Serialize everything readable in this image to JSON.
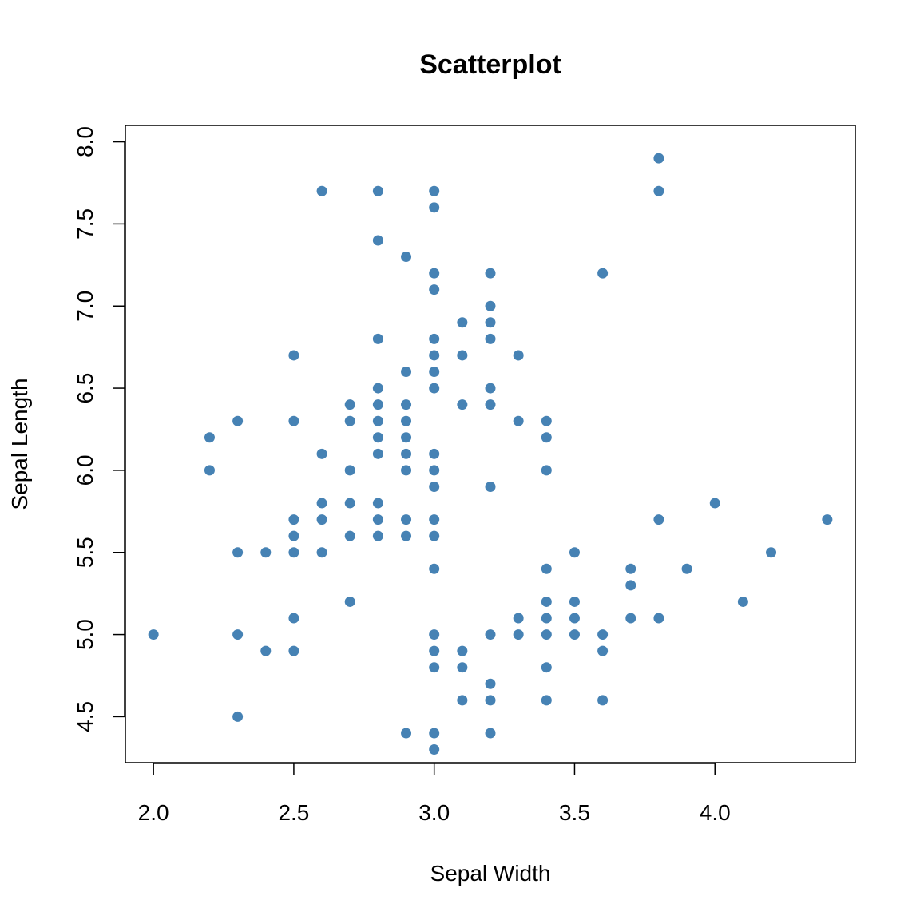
{
  "chart_data": {
    "type": "scatter",
    "title": "Scatterplot",
    "xlabel": "Sepal Width",
    "ylabel": "Sepal Length",
    "xlim": [
      1.9,
      4.5
    ],
    "ylim": [
      4.22,
      8.1
    ],
    "x_ticks": [
      "2.0",
      "2.5",
      "3.0",
      "3.5",
      "4.0"
    ],
    "y_ticks": [
      "4.5",
      "5.0",
      "5.5",
      "6.0",
      "6.5",
      "7.0",
      "7.5",
      "8.0"
    ],
    "grid": false,
    "point_color": "#4682B4",
    "points": [
      {
        "x": 2.0,
        "y": 5.0
      },
      {
        "x": 2.2,
        "y": 6.2
      },
      {
        "x": 2.2,
        "y": 6.0
      },
      {
        "x": 2.3,
        "y": 6.3
      },
      {
        "x": 2.3,
        "y": 5.5
      },
      {
        "x": 2.3,
        "y": 5.0
      },
      {
        "x": 2.3,
        "y": 4.5
      },
      {
        "x": 2.4,
        "y": 5.5
      },
      {
        "x": 2.4,
        "y": 4.9
      },
      {
        "x": 2.5,
        "y": 6.7
      },
      {
        "x": 2.5,
        "y": 6.3
      },
      {
        "x": 2.5,
        "y": 5.7
      },
      {
        "x": 2.5,
        "y": 5.6
      },
      {
        "x": 2.5,
        "y": 5.5
      },
      {
        "x": 2.5,
        "y": 5.1
      },
      {
        "x": 2.5,
        "y": 4.9
      },
      {
        "x": 2.6,
        "y": 7.7
      },
      {
        "x": 2.6,
        "y": 6.1
      },
      {
        "x": 2.6,
        "y": 5.8
      },
      {
        "x": 2.6,
        "y": 5.7
      },
      {
        "x": 2.6,
        "y": 5.5
      },
      {
        "x": 2.7,
        "y": 6.4
      },
      {
        "x": 2.7,
        "y": 6.3
      },
      {
        "x": 2.7,
        "y": 6.0
      },
      {
        "x": 2.7,
        "y": 5.8
      },
      {
        "x": 2.7,
        "y": 5.6
      },
      {
        "x": 2.7,
        "y": 5.2
      },
      {
        "x": 2.8,
        "y": 7.7
      },
      {
        "x": 2.8,
        "y": 7.4
      },
      {
        "x": 2.8,
        "y": 6.8
      },
      {
        "x": 2.8,
        "y": 6.5
      },
      {
        "x": 2.8,
        "y": 6.4
      },
      {
        "x": 2.8,
        "y": 6.3
      },
      {
        "x": 2.8,
        "y": 6.2
      },
      {
        "x": 2.8,
        "y": 6.1
      },
      {
        "x": 2.8,
        "y": 5.8
      },
      {
        "x": 2.8,
        "y": 5.7
      },
      {
        "x": 2.8,
        "y": 5.6
      },
      {
        "x": 2.9,
        "y": 7.3
      },
      {
        "x": 2.9,
        "y": 6.6
      },
      {
        "x": 2.9,
        "y": 6.4
      },
      {
        "x": 2.9,
        "y": 6.3
      },
      {
        "x": 2.9,
        "y": 6.2
      },
      {
        "x": 2.9,
        "y": 6.1
      },
      {
        "x": 2.9,
        "y": 6.0
      },
      {
        "x": 2.9,
        "y": 5.7
      },
      {
        "x": 2.9,
        "y": 5.6
      },
      {
        "x": 2.9,
        "y": 4.4
      },
      {
        "x": 3.0,
        "y": 7.7
      },
      {
        "x": 3.0,
        "y": 7.6
      },
      {
        "x": 3.0,
        "y": 7.2
      },
      {
        "x": 3.0,
        "y": 7.1
      },
      {
        "x": 3.0,
        "y": 6.8
      },
      {
        "x": 3.0,
        "y": 6.7
      },
      {
        "x": 3.0,
        "y": 6.6
      },
      {
        "x": 3.0,
        "y": 6.5
      },
      {
        "x": 3.0,
        "y": 6.1
      },
      {
        "x": 3.0,
        "y": 6.0
      },
      {
        "x": 3.0,
        "y": 5.9
      },
      {
        "x": 3.0,
        "y": 5.7
      },
      {
        "x": 3.0,
        "y": 5.6
      },
      {
        "x": 3.0,
        "y": 5.4
      },
      {
        "x": 3.0,
        "y": 5.0
      },
      {
        "x": 3.0,
        "y": 4.9
      },
      {
        "x": 3.0,
        "y": 4.8
      },
      {
        "x": 3.0,
        "y": 4.4
      },
      {
        "x": 3.0,
        "y": 4.3
      },
      {
        "x": 3.1,
        "y": 6.9
      },
      {
        "x": 3.1,
        "y": 6.7
      },
      {
        "x": 3.1,
        "y": 6.4
      },
      {
        "x": 3.1,
        "y": 4.9
      },
      {
        "x": 3.1,
        "y": 4.8
      },
      {
        "x": 3.1,
        "y": 4.6
      },
      {
        "x": 3.2,
        "y": 7.2
      },
      {
        "x": 3.2,
        "y": 7.0
      },
      {
        "x": 3.2,
        "y": 6.9
      },
      {
        "x": 3.2,
        "y": 6.8
      },
      {
        "x": 3.2,
        "y": 6.5
      },
      {
        "x": 3.2,
        "y": 6.4
      },
      {
        "x": 3.2,
        "y": 5.9
      },
      {
        "x": 3.2,
        "y": 5.0
      },
      {
        "x": 3.2,
        "y": 4.7
      },
      {
        "x": 3.2,
        "y": 4.6
      },
      {
        "x": 3.2,
        "y": 4.4
      },
      {
        "x": 3.3,
        "y": 6.7
      },
      {
        "x": 3.3,
        "y": 6.3
      },
      {
        "x": 3.3,
        "y": 5.1
      },
      {
        "x": 3.3,
        "y": 5.0
      },
      {
        "x": 3.4,
        "y": 6.3
      },
      {
        "x": 3.4,
        "y": 6.2
      },
      {
        "x": 3.4,
        "y": 6.0
      },
      {
        "x": 3.4,
        "y": 5.4
      },
      {
        "x": 3.4,
        "y": 5.2
      },
      {
        "x": 3.4,
        "y": 5.1
      },
      {
        "x": 3.4,
        "y": 5.0
      },
      {
        "x": 3.4,
        "y": 4.8
      },
      {
        "x": 3.4,
        "y": 4.6
      },
      {
        "x": 3.5,
        "y": 5.5
      },
      {
        "x": 3.5,
        "y": 5.2
      },
      {
        "x": 3.5,
        "y": 5.1
      },
      {
        "x": 3.5,
        "y": 5.0
      },
      {
        "x": 3.6,
        "y": 7.2
      },
      {
        "x": 3.6,
        "y": 5.0
      },
      {
        "x": 3.6,
        "y": 4.9
      },
      {
        "x": 3.6,
        "y": 4.6
      },
      {
        "x": 3.7,
        "y": 5.4
      },
      {
        "x": 3.7,
        "y": 5.3
      },
      {
        "x": 3.7,
        "y": 5.1
      },
      {
        "x": 3.8,
        "y": 7.9
      },
      {
        "x": 3.8,
        "y": 7.7
      },
      {
        "x": 3.8,
        "y": 5.7
      },
      {
        "x": 3.8,
        "y": 5.1
      },
      {
        "x": 3.9,
        "y": 5.4
      },
      {
        "x": 4.0,
        "y": 5.8
      },
      {
        "x": 4.1,
        "y": 5.2
      },
      {
        "x": 4.2,
        "y": 5.5
      },
      {
        "x": 4.4,
        "y": 5.7
      }
    ]
  }
}
